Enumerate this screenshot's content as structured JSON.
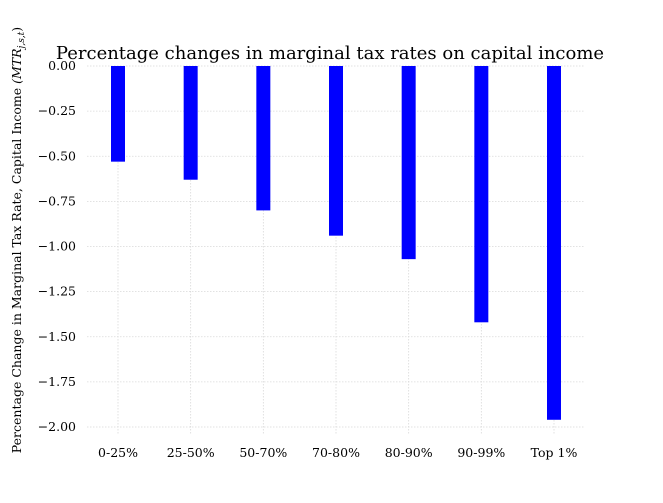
{
  "chart_data": {
    "type": "bar",
    "title": "Percentage changes in marginal tax rates on capital income",
    "xlabel": "",
    "ylabel": "Percentage Change in Marginal Tax Rate, Capital Income ",
    "ylabel_math": "(MTR",
    "ylabel_math_sub": "j,s,t",
    "ylabel_math_close": ")",
    "categories": [
      "0-25%",
      "25-50%",
      "50-70%",
      "70-80%",
      "80-90%",
      "90-99%",
      "Top 1%"
    ],
    "values": [
      -0.53,
      -0.63,
      -0.8,
      -0.94,
      -1.07,
      -1.42,
      -1.96
    ],
    "ylim": [
      -2.05,
      0.0
    ],
    "yticks": [
      0.0,
      -0.25,
      -0.5,
      -0.75,
      -1.0,
      -1.25,
      -1.5,
      -1.75,
      -2.0
    ],
    "ytick_labels": [
      "0.00",
      "−0.25",
      "−0.50",
      "−0.75",
      "−1.00",
      "−1.25",
      "−1.50",
      "−1.75",
      "−2.00"
    ],
    "grid": true,
    "bar_color": "#0000ff",
    "grid_color": "#d9d9d9"
  }
}
